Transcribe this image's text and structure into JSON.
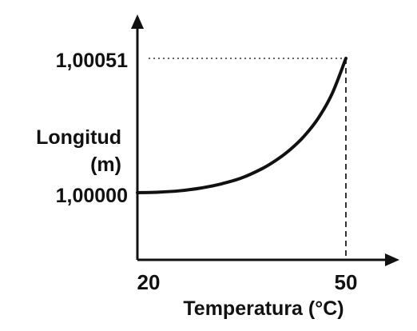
{
  "chart_data": {
    "type": "line",
    "title": "",
    "xlabel": "Temperatura (°C)",
    "ylabel_line1": "Longitud",
    "ylabel_line2": "(m)",
    "x_ticks": [
      "20",
      "50"
    ],
    "y_ticks": [
      "1,00000",
      "1,00051"
    ],
    "xlim": [
      20,
      50
    ],
    "ylim": [
      1.0,
      1.00051
    ],
    "grid": false,
    "series": [
      {
        "x": [
          20,
          23,
          26,
          29,
          32,
          35,
          38,
          40,
          42,
          44,
          46,
          48,
          50
        ],
        "y": [
          1.0,
          1.000002,
          1.000007,
          1.000017,
          1.000033,
          1.000056,
          1.000092,
          1.000124,
          1.000164,
          1.000215,
          1.000282,
          1.000375,
          1.00051
        ]
      }
    ],
    "reference_lines": [
      {
        "type": "horizontal",
        "at_y": 1.00051,
        "style": "dotted"
      },
      {
        "type": "vertical",
        "at_x": 50,
        "style": "dashed"
      }
    ]
  }
}
